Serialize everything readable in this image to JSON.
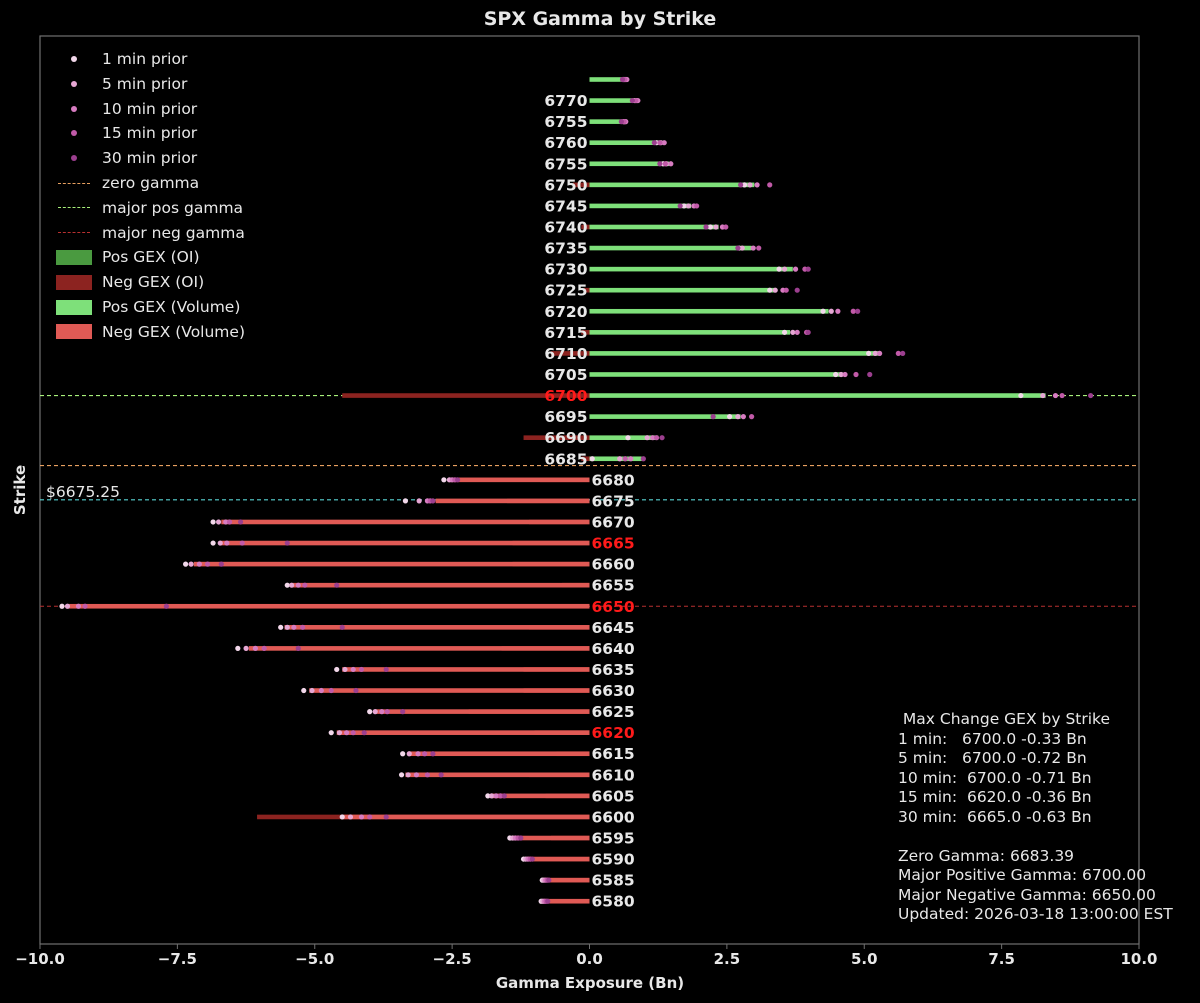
{
  "chart_data": {
    "type": "bar",
    "orientation": "horizontal",
    "title": "SPX Gamma by Strike",
    "xlabel": "Gamma Exposure (Bn)",
    "ylabel": "Strike",
    "xlim": [
      -10,
      10
    ],
    "xticks": [
      -10,
      -7.5,
      -5,
      -2.5,
      0,
      2.5,
      5,
      7.5,
      10
    ],
    "xtick_labels": [
      "−10.0",
      "−7.5",
      "−5.0",
      "−2.5",
      "0.0",
      "2.5",
      "5.0",
      "7.5",
      "10.0"
    ],
    "spot_label": "$6675.25",
    "reference_lines": {
      "zero_gamma": 6683.39,
      "major_pos_gamma": 6700,
      "major_neg_gamma": 6650,
      "spot": 6675.25
    },
    "highlight_strikes": [
      "6700",
      "6665",
      "6650",
      "6620"
    ],
    "strikes": [
      {
        "label": "",
        "oi": 0.0,
        "vol": 0.68,
        "prior": [
          0.62,
          0.65,
          0.68,
          0.64,
          0.6
        ]
      },
      {
        "label": "6770",
        "oi": 0.0,
        "vol": 0.85,
        "prior": [
          0.82,
          0.86,
          0.88,
          0.84,
          0.78
        ]
      },
      {
        "label": "6755",
        "oi": 0.0,
        "vol": 0.68,
        "prior": [
          0.62,
          0.64,
          0.66,
          0.63,
          0.58
        ]
      },
      {
        "label": "6760",
        "oi": 0.0,
        "vol": 1.32,
        "prior": [
          1.22,
          1.3,
          1.36,
          1.28,
          1.18
        ]
      },
      {
        "label": "6755",
        "oi": 0.0,
        "vol": 1.45,
        "prior": [
          1.34,
          1.4,
          1.48,
          1.38,
          1.28
        ]
      },
      {
        "label": "6750",
        "oi": -0.3,
        "vol": 3.0,
        "prior": [
          2.82,
          2.92,
          3.05,
          3.28,
          2.75
        ]
      },
      {
        "label": "6745",
        "oi": 0.0,
        "vol": 1.85,
        "prior": [
          1.72,
          1.8,
          1.9,
          1.95,
          1.65
        ]
      },
      {
        "label": "6740",
        "oi": -0.15,
        "vol": 2.35,
        "prior": [
          2.2,
          2.3,
          2.42,
          2.48,
          2.12
        ]
      },
      {
        "label": "6735",
        "oi": 0.0,
        "vol": 2.95,
        "prior": [
          2.72,
          2.78,
          2.98,
          3.08,
          2.7
        ]
      },
      {
        "label": "6730",
        "oi": 0.0,
        "vol": 3.7,
        "prior": [
          3.45,
          3.55,
          3.75,
          3.92,
          3.98
        ]
      },
      {
        "label": "6725",
        "oi": -0.1,
        "vol": 3.4,
        "prior": [
          3.28,
          3.38,
          3.52,
          3.58,
          3.78
        ]
      },
      {
        "label": "6720",
        "oi": 0.0,
        "vol": 4.35,
        "prior": [
          4.25,
          4.4,
          4.52,
          4.8,
          4.88
        ]
      },
      {
        "label": "6715",
        "oi": -0.15,
        "vol": 3.65,
        "prior": [
          3.55,
          3.7,
          3.78,
          3.95,
          3.98
        ]
      },
      {
        "label": "6710",
        "oi": -0.7,
        "vol": 5.3,
        "prior": [
          5.08,
          5.2,
          5.28,
          5.62,
          5.7
        ]
      },
      {
        "label": "6705",
        "oi": 0.0,
        "vol": 4.6,
        "prior": [
          4.48,
          4.58,
          4.65,
          4.85,
          5.1
        ]
      },
      {
        "label": "6700",
        "oi": -4.5,
        "vol": 8.3,
        "prior": [
          7.85,
          8.25,
          8.48,
          8.6,
          9.12
        ]
      },
      {
        "label": "6695",
        "oi": 0.0,
        "vol": 2.75,
        "prior": [
          2.55,
          2.7,
          2.8,
          2.95,
          2.25
        ]
      },
      {
        "label": "6690",
        "oi": -1.2,
        "vol": 1.25,
        "prior": [
          0.7,
          1.05,
          1.15,
          1.22,
          1.32
        ]
      },
      {
        "label": "6685",
        "oi": -0.15,
        "vol": 0.95,
        "prior": [
          0.05,
          0.55,
          0.75,
          0.65,
          0.98
        ]
      },
      {
        "label": "6680",
        "oi": -0.9,
        "vol": -2.55,
        "prior": [
          -2.65,
          -2.55,
          -2.5,
          -2.45,
          -2.4
        ]
      },
      {
        "label": "6675",
        "oi": -1.5,
        "vol": -2.8,
        "prior": [
          -3.35,
          -3.1,
          -2.95,
          -2.9,
          -2.85
        ]
      },
      {
        "label": "6670",
        "oi": -1.1,
        "vol": -6.7,
        "prior": [
          -6.85,
          -6.75,
          -6.62,
          -6.55,
          -6.35
        ]
      },
      {
        "label": "6665",
        "oi": -1.4,
        "vol": -6.7,
        "prior": [
          -6.85,
          -6.72,
          -6.6,
          -6.32,
          -5.5
        ]
      },
      {
        "label": "6660",
        "oi": -1.4,
        "vol": -7.2,
        "prior": [
          -7.35,
          -7.25,
          -7.1,
          -6.95,
          -6.7
        ]
      },
      {
        "label": "6655",
        "oi": -0.5,
        "vol": -5.4,
        "prior": [
          -5.5,
          -5.42,
          -5.3,
          -5.18,
          -4.6
        ]
      },
      {
        "label": "6650",
        "oi": -3.8,
        "vol": -9.5,
        "prior": [
          -9.6,
          -9.5,
          -9.3,
          -9.18,
          -7.7
        ]
      },
      {
        "label": "6645",
        "oi": -1.1,
        "vol": -5.55,
        "prior": [
          -5.62,
          -5.5,
          -5.38,
          -5.22,
          -4.5
        ]
      },
      {
        "label": "6640",
        "oi": -1.6,
        "vol": -6.2,
        "prior": [
          -6.4,
          -6.25,
          -6.08,
          -5.92,
          -5.3
        ]
      },
      {
        "label": "6635",
        "oi": -1.2,
        "vol": -4.5,
        "prior": [
          -4.6,
          -4.45,
          -4.3,
          -4.15,
          -3.7
        ]
      },
      {
        "label": "6630",
        "oi": -1.2,
        "vol": -5.1,
        "prior": [
          -5.2,
          -5.05,
          -4.88,
          -4.7,
          -4.25
        ]
      },
      {
        "label": "6625",
        "oi": -2.2,
        "vol": -3.9,
        "prior": [
          -4.0,
          -3.9,
          -3.78,
          -3.68,
          -3.4
        ]
      },
      {
        "label": "6620",
        "oi": -1.0,
        "vol": -4.6,
        "prior": [
          -4.7,
          -4.55,
          -4.42,
          -4.3,
          -4.1
        ]
      },
      {
        "label": "6615",
        "oi": -0.6,
        "vol": -3.3,
        "prior": [
          -3.4,
          -3.28,
          -3.12,
          -3.0,
          -2.85
        ]
      },
      {
        "label": "6610",
        "oi": -1.1,
        "vol": -3.35,
        "prior": [
          -3.42,
          -3.3,
          -3.15,
          -2.95,
          -2.7
        ]
      },
      {
        "label": "6605",
        "oi": -0.8,
        "vol": -1.8,
        "prior": [
          -1.85,
          -1.78,
          -1.7,
          -1.62,
          -1.55
        ]
      },
      {
        "label": "6600",
        "oi": -6.05,
        "vol": -4.5,
        "prior": [
          -4.5,
          -4.35,
          -4.15,
          -4.0,
          -3.7
        ]
      },
      {
        "label": "6595",
        "oi": -0.7,
        "vol": -1.4,
        "prior": [
          -1.45,
          -1.4,
          -1.35,
          -1.3,
          -1.25
        ]
      },
      {
        "label": "6590",
        "oi": -1.15,
        "vol": -1.15,
        "prior": [
          -1.2,
          -1.16,
          -1.12,
          -1.08,
          -1.04
        ]
      },
      {
        "label": "6585",
        "oi": -0.85,
        "vol": -0.85,
        "prior": [
          -0.86,
          -0.83,
          -0.8,
          -0.77,
          -0.74
        ]
      },
      {
        "label": "6580",
        "oi": -0.85,
        "vol": -0.85,
        "prior": [
          -0.88,
          -0.85,
          -0.82,
          -0.79,
          -0.76
        ]
      }
    ]
  },
  "legend": [
    {
      "kind": "dot",
      "label": "1 min prior",
      "color": "#f2d7ea"
    },
    {
      "kind": "dot",
      "label": "5 min prior",
      "color": "#e6a7d4"
    },
    {
      "kind": "dot",
      "label": "10 min prior",
      "color": "#d77cc1"
    },
    {
      "kind": "dot",
      "label": "15 min prior",
      "color": "#c15aa8"
    },
    {
      "kind": "dot",
      "label": "30 min prior",
      "color": "#9c3f8f"
    },
    {
      "kind": "dash",
      "label": "zero gamma",
      "color": "#e8a060"
    },
    {
      "kind": "dash",
      "label": "major pos gamma",
      "color": "#a8f07a"
    },
    {
      "kind": "dash",
      "label": "major neg gamma",
      "color": "#b83030"
    },
    {
      "kind": "patch",
      "label": "Pos GEX (OI)",
      "color": "#4a9a40"
    },
    {
      "kind": "patch",
      "label": "Neg GEX (OI)",
      "color": "#8c2320"
    },
    {
      "kind": "patch",
      "label": "Pos GEX (Volume)",
      "color": "#7ee07a"
    },
    {
      "kind": "patch",
      "label": "Neg GEX (Volume)",
      "color": "#e05a55"
    }
  ],
  "summary": {
    "heading": " Max Change GEX by Strike",
    "rows": [
      "1 min:   6700.0 -0.33 Bn",
      "5 min:   6700.0 -0.72 Bn",
      "10 min:  6700.0 -0.71 Bn",
      "15 min:  6620.0 -0.36 Bn",
      "30 min:  6665.0 -0.63 Bn"
    ],
    "zero_gamma": "Zero Gamma: 6683.39",
    "major_pos": "Major Positive Gamma: 6700.00",
    "major_neg": "Major Negative Gamma: 6650.00",
    "updated": "Updated: 2026-03-18 13:00:00 EST"
  },
  "colors": {
    "pos_oi": "#4a9a40",
    "neg_oi": "#8c2320",
    "pos_vol": "#7ee07a",
    "neg_vol": "#e05a55",
    "zero_line": "#e8a060",
    "pos_line": "#a8f07a",
    "neg_line": "#b83030",
    "spot_line": "#59d3d3",
    "highlight_text": "#ff1a1a",
    "text": "#e8e8e8",
    "frame": "#707070"
  }
}
